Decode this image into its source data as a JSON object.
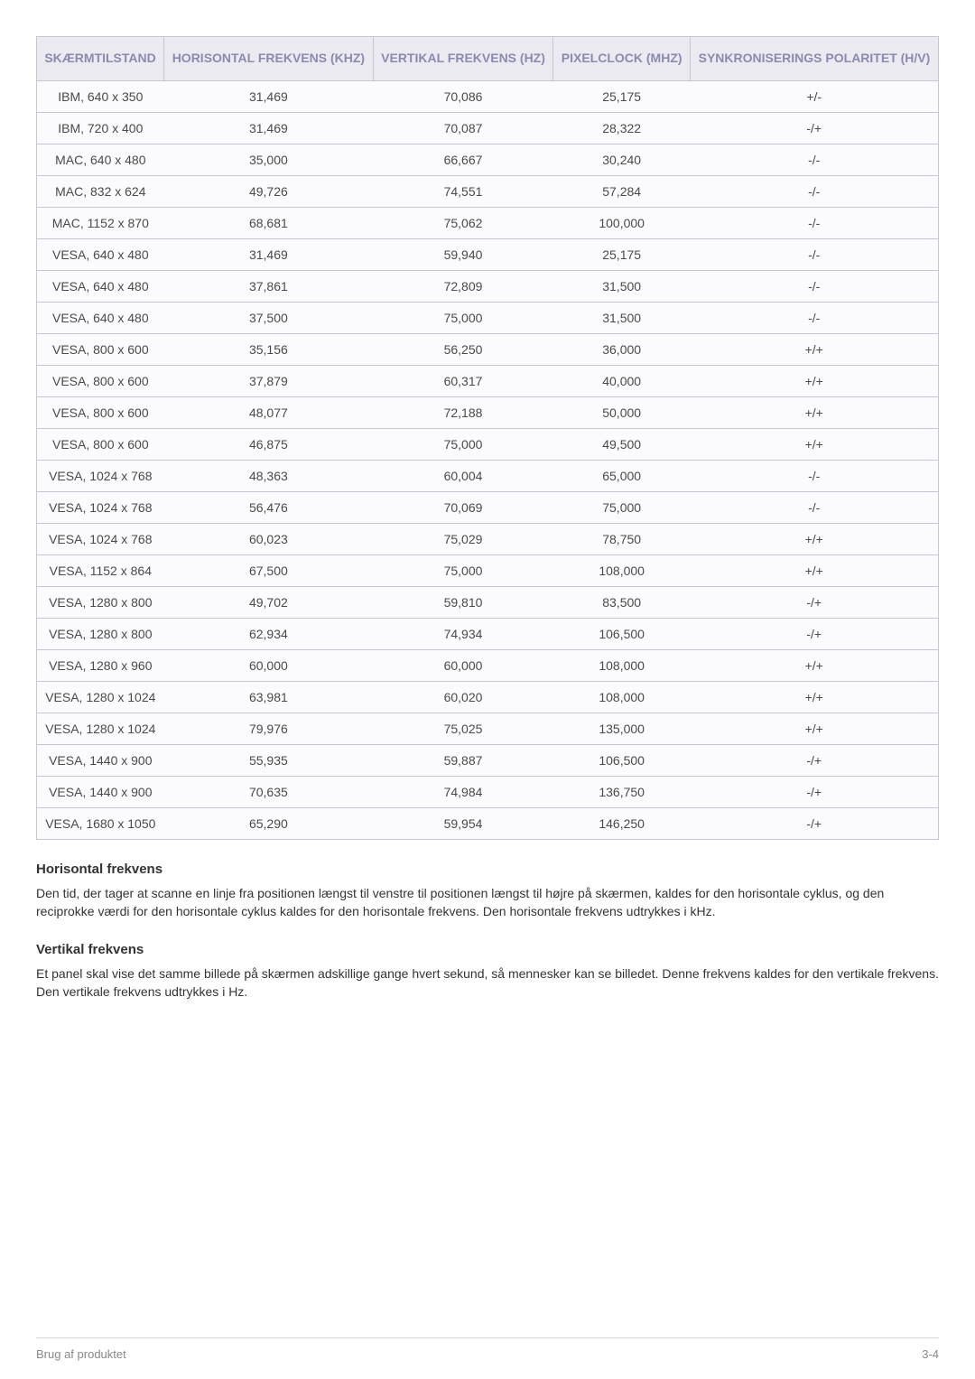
{
  "table": {
    "columns": [
      "SKÆRMTILSTAND",
      "HORISONTAL FREKVENS (KHZ)",
      "VERTIKAL FREKVENS (HZ)",
      "PIXELCLOCK (MHZ)",
      "SYNKRONISERINGS POLARITET (H/V)"
    ],
    "rows": [
      [
        "IBM, 640 x 350",
        "31,469",
        "70,086",
        "25,175",
        "+/-"
      ],
      [
        "IBM, 720 x 400",
        "31,469",
        "70,087",
        "28,322",
        "-/+"
      ],
      [
        "MAC, 640 x 480",
        "35,000",
        "66,667",
        "30,240",
        "-/-"
      ],
      [
        "MAC, 832 x 624",
        "49,726",
        "74,551",
        "57,284",
        "-/-"
      ],
      [
        "MAC, 1152 x 870",
        "68,681",
        "75,062",
        "100,000",
        "-/-"
      ],
      [
        "VESA, 640 x 480",
        "31,469",
        "59,940",
        "25,175",
        "-/-"
      ],
      [
        "VESA, 640 x 480",
        "37,861",
        "72,809",
        "31,500",
        "-/-"
      ],
      [
        "VESA, 640 x 480",
        "37,500",
        "75,000",
        "31,500",
        "-/-"
      ],
      [
        "VESA, 800 x 600",
        "35,156",
        "56,250",
        "36,000",
        "+/+"
      ],
      [
        "VESA, 800 x 600",
        "37,879",
        "60,317",
        "40,000",
        "+/+"
      ],
      [
        "VESA, 800 x 600",
        "48,077",
        "72,188",
        "50,000",
        "+/+"
      ],
      [
        "VESA, 800 x 600",
        "46,875",
        "75,000",
        "49,500",
        "+/+"
      ],
      [
        "VESA, 1024 x 768",
        "48,363",
        "60,004",
        "65,000",
        "-/-"
      ],
      [
        "VESA, 1024 x 768",
        "56,476",
        "70,069",
        "75,000",
        "-/-"
      ],
      [
        "VESA, 1024 x 768",
        "60,023",
        "75,029",
        "78,750",
        "+/+"
      ],
      [
        "VESA, 1152 x 864",
        "67,500",
        "75,000",
        "108,000",
        "+/+"
      ],
      [
        "VESA, 1280 x 800",
        "49,702",
        "59,810",
        "83,500",
        "-/+"
      ],
      [
        "VESA, 1280 x 800",
        "62,934",
        "74,934",
        "106,500",
        "-/+"
      ],
      [
        "VESA, 1280 x 960",
        "60,000",
        "60,000",
        "108,000",
        "+/+"
      ],
      [
        "VESA, 1280 x 1024",
        "63,981",
        "60,020",
        "108,000",
        "+/+"
      ],
      [
        "VESA, 1280 x 1024",
        "79,976",
        "75,025",
        "135,000",
        "+/+"
      ],
      [
        "VESA, 1440 x 900",
        "55,935",
        "59,887",
        "106,500",
        "-/+"
      ],
      [
        "VESA, 1440 x 900",
        "70,635",
        "74,984",
        "136,750",
        "-/+"
      ],
      [
        "VESA, 1680 x 1050",
        "65,290",
        "59,954",
        "146,250",
        "-/+"
      ]
    ],
    "header_bg": "#eceaf1",
    "header_color": "#8a8aaf",
    "border_color": "#c8c4d4",
    "row_bg": "#fbfafc",
    "cell_color": "#4a4a4a",
    "col_widths": [
      "20%",
      "20%",
      "20%",
      "20%",
      "20%"
    ]
  },
  "sections": [
    {
      "title": "Horisontal frekvens",
      "body": "Den tid, der tager at scanne en linje fra positionen længst til venstre til positionen længst til højre på skærmen, kaldes for den horisontale cyklus, og den reciprokke værdi for den horisontale cyklus kaldes for den horisontale frekvens. Den horisontale frekvens udtrykkes i kHz."
    },
    {
      "title": "Vertikal frekvens",
      "body": "Et panel skal vise det samme billede på skærmen adskillige gange hvert sekund, så mennesker kan se billedet. Denne frekvens kaldes for den vertikale frekvens. Den vertikale frekvens udtrykkes i Hz."
    }
  ],
  "footer": {
    "left": "Brug af produktet",
    "right": "3-4"
  }
}
